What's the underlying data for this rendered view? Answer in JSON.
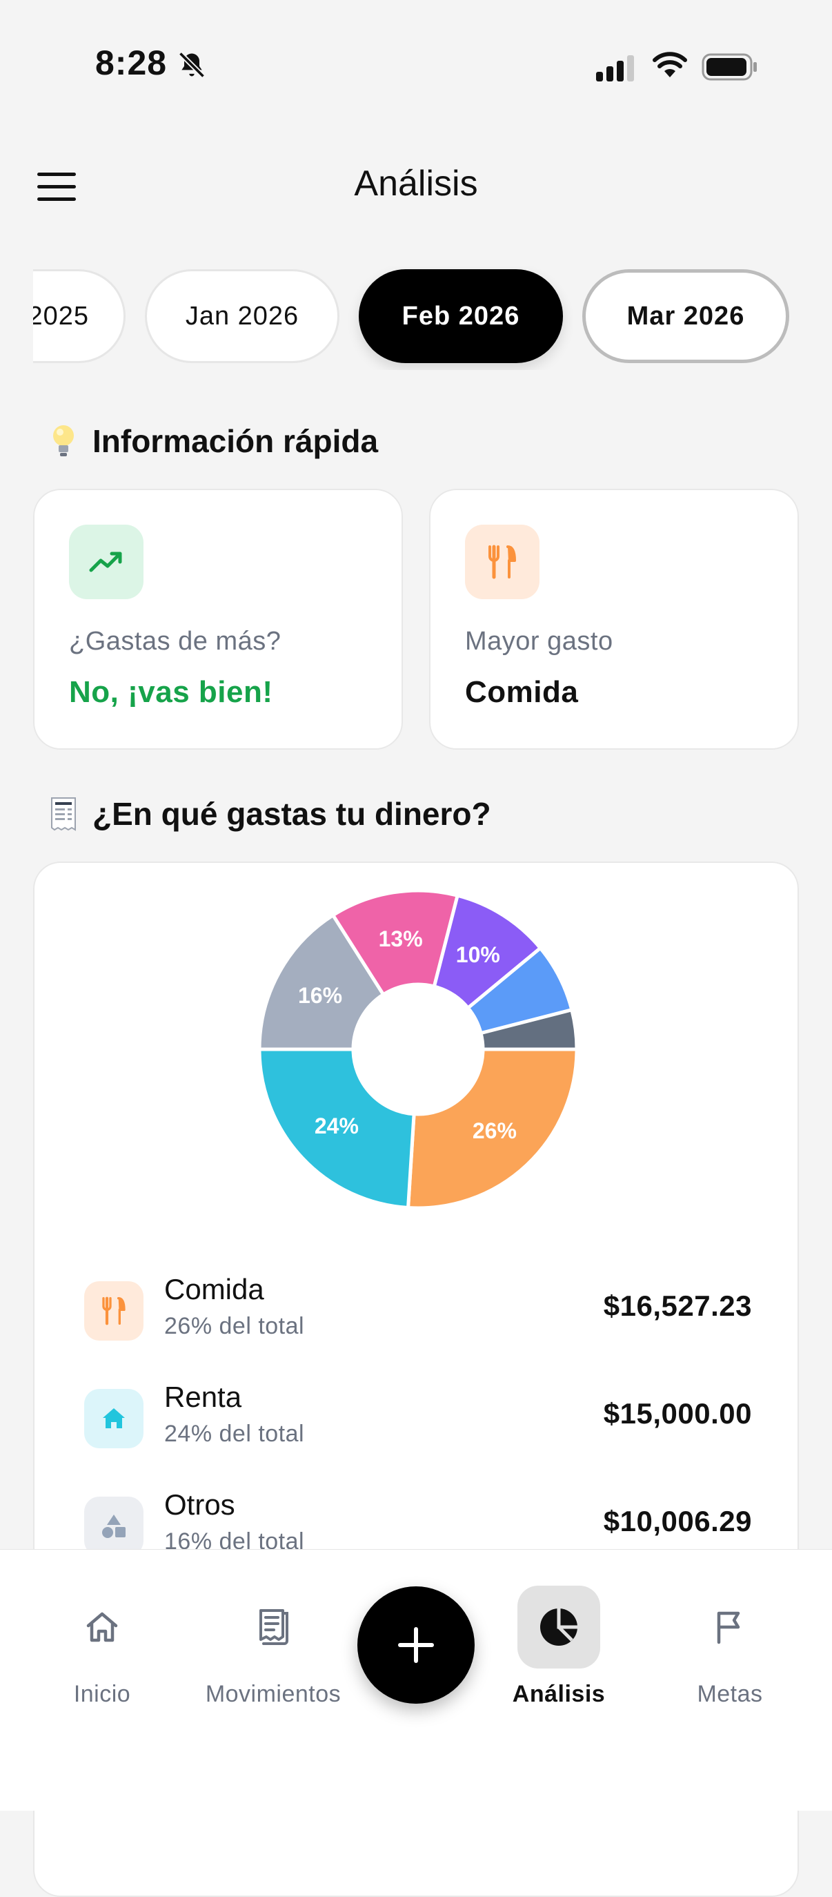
{
  "status_bar": {
    "time": "8:28"
  },
  "header": {
    "title": "Análisis"
  },
  "months": [
    "2025",
    "Jan 2026",
    "Feb 2026",
    "Mar 2026"
  ],
  "quick_info": {
    "title": "Información rápida",
    "overspend": {
      "label": "¿Gastas de más?",
      "value": "No, ¡vas bien!",
      "value_color": "#16a34a"
    },
    "top_expense": {
      "label": "Mayor gasto",
      "value": "Comida"
    }
  },
  "spending": {
    "title": "¿En qué gastas tu dinero?",
    "chart_data": {
      "type": "pie",
      "slices": [
        {
          "label": "Comida",
          "percent": 26,
          "color": "#fba457"
        },
        {
          "label": "Renta",
          "percent": 24,
          "color": "#2ec1dd"
        },
        {
          "label": "Otros",
          "percent": 16,
          "color": "#a4aebf"
        },
        {
          "label": "",
          "percent": 13,
          "color": "#ef63a8"
        },
        {
          "label": "",
          "percent": 10,
          "color": "#8b5cf6"
        },
        {
          "label": "",
          "percent": 7,
          "color": "#5b9bf8"
        },
        {
          "label": "",
          "percent": 4,
          "color": "#636f80"
        }
      ]
    },
    "categories": [
      {
        "name": "Comida",
        "pct": "26% del total",
        "amount": "$16,527.23",
        "icon": "utensils-icon",
        "color": "#fb923c"
      },
      {
        "name": "Renta",
        "pct": "24% del total",
        "amount": "$15,000.00",
        "icon": "home-icon",
        "color": "#22c5dd"
      },
      {
        "name": "Otros",
        "pct": "16% del total",
        "amount": "$10,006.29",
        "icon": "shapes-icon",
        "color": "#94a3b8"
      }
    ]
  },
  "nav": {
    "items": [
      "Inicio",
      "Movimientos",
      "Análisis",
      "Metas"
    ],
    "active": "Análisis"
  }
}
